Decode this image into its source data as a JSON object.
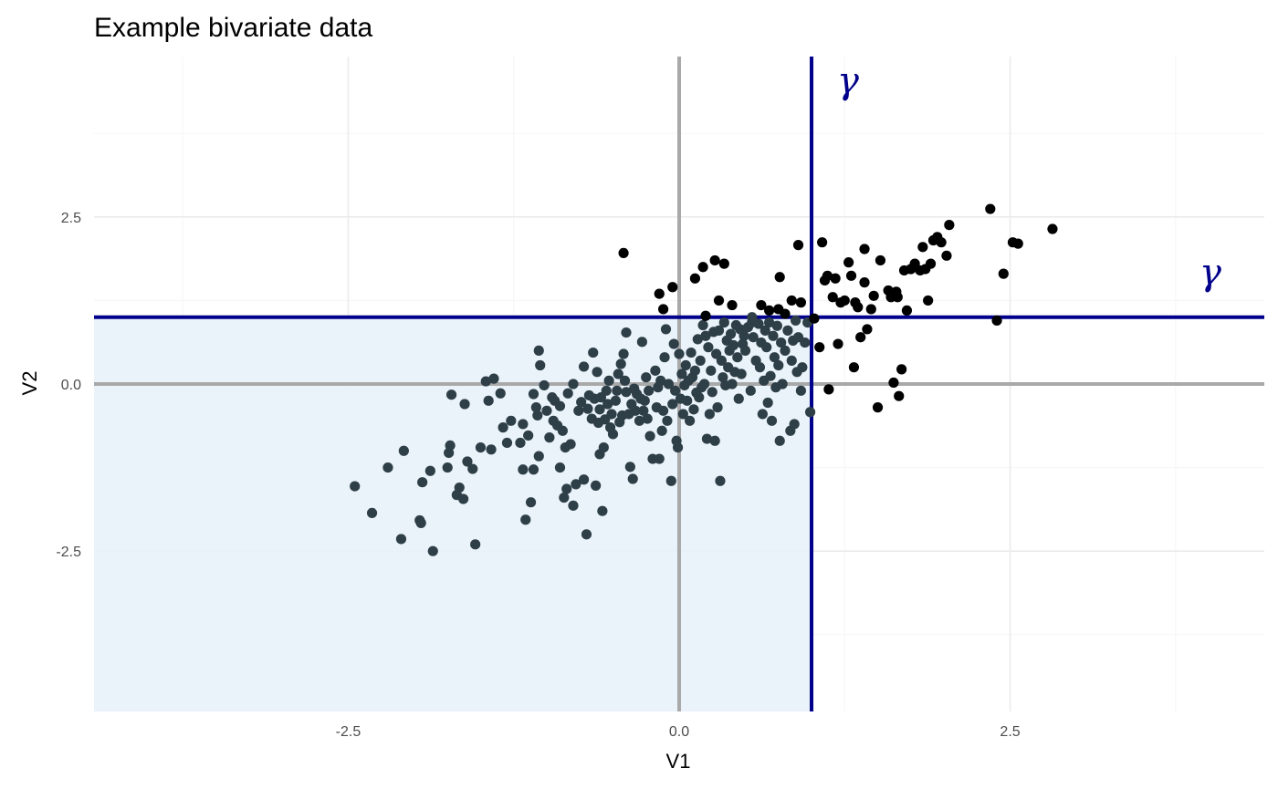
{
  "chart_data": {
    "type": "scatter",
    "title": "Example bivariate data",
    "xlabel": "V1",
    "ylabel": "V2",
    "xlim": [
      -4.42,
      4.42
    ],
    "ylim": [
      -4.9,
      4.9
    ],
    "x_ticks": [
      -2.5,
      0.0,
      2.5
    ],
    "x_tick_labels": [
      "-2.5",
      "0.0",
      "2.5"
    ],
    "y_ticks": [
      -2.5,
      0.0,
      2.5
    ],
    "y_tick_labels": [
      "-2.5",
      "0.0",
      "2.5"
    ],
    "grid": true,
    "legend": "none",
    "threshold": 1.0,
    "threshold_label": "γ",
    "colors": {
      "threshold_line": "#00008b",
      "zero_line": "#a9a9a9",
      "region_fill": "#e8f2f9",
      "point_exceed": "#000000",
      "point_below": "#2f3f47",
      "grid_major": "#ebebeb",
      "grid_minor": "#f5f5f5"
    },
    "points": [
      [
        -2.45,
        -1.53
      ],
      [
        -2.32,
        -1.93
      ],
      [
        -2.2,
        -1.25
      ],
      [
        -2.1,
        -2.32
      ],
      [
        -2.08,
        -1.0
      ],
      [
        -1.96,
        -2.04
      ],
      [
        -1.95,
        -2.08
      ],
      [
        -1.94,
        -1.47
      ],
      [
        -1.88,
        -1.3
      ],
      [
        -1.86,
        -2.5
      ],
      [
        -1.75,
        -1.25
      ],
      [
        -1.74,
        -1.03
      ],
      [
        -1.73,
        -0.92
      ],
      [
        -1.72,
        -0.16
      ],
      [
        -1.68,
        -1.66
      ],
      [
        -1.66,
        -1.55
      ],
      [
        -1.63,
        -1.72
      ],
      [
        -1.62,
        -0.3
      ],
      [
        -1.6,
        -1.16
      ],
      [
        -1.56,
        -1.27
      ],
      [
        -1.54,
        -2.4
      ],
      [
        -1.5,
        -0.95
      ],
      [
        -1.46,
        0.04
      ],
      [
        -1.44,
        -0.25
      ],
      [
        -1.42,
        -0.98
      ],
      [
        -1.4,
        0.08
      ],
      [
        -1.35,
        -0.14
      ],
      [
        -1.33,
        -0.65
      ],
      [
        -1.3,
        -0.88
      ],
      [
        -1.27,
        -0.55
      ],
      [
        -1.2,
        -0.88
      ],
      [
        -1.18,
        -0.6
      ],
      [
        -1.18,
        -1.28
      ],
      [
        -1.16,
        -2.03
      ],
      [
        -1.14,
        -0.77
      ],
      [
        -1.12,
        -1.77
      ],
      [
        -1.1,
        -1.28
      ],
      [
        -1.1,
        -0.15
      ],
      [
        -1.08,
        -0.35
      ],
      [
        -1.07,
        -0.47
      ],
      [
        -1.06,
        -1.08
      ],
      [
        -1.06,
        0.5
      ],
      [
        -1.05,
        0.28
      ],
      [
        -1.02,
        -0.02
      ],
      [
        -1.0,
        -0.4
      ],
      [
        -0.98,
        -0.8
      ],
      [
        -0.96,
        -0.2
      ],
      [
        -0.95,
        -0.55
      ],
      [
        -0.94,
        -0.25
      ],
      [
        -0.92,
        -0.62
      ],
      [
        -0.9,
        -1.25
      ],
      [
        -0.9,
        -0.33
      ],
      [
        -0.88,
        -0.7
      ],
      [
        -0.87,
        -1.7
      ],
      [
        -0.86,
        -0.95
      ],
      [
        -0.85,
        -1.57
      ],
      [
        -0.84,
        -0.14
      ],
      [
        -0.82,
        -0.9
      ],
      [
        -0.8,
        -1.82
      ],
      [
        -0.8,
        0.0
      ],
      [
        -0.78,
        -1.5
      ],
      [
        -0.76,
        -0.4
      ],
      [
        -0.74,
        -0.27
      ],
      [
        -0.72,
        -1.43
      ],
      [
        -0.72,
        0.26
      ],
      [
        -0.7,
        -2.25
      ],
      [
        -0.69,
        -0.37
      ],
      [
        -0.68,
        -0.17
      ],
      [
        -0.66,
        -0.52
      ],
      [
        -0.65,
        0.47
      ],
      [
        -0.64,
        -0.22
      ],
      [
        -0.63,
        -1.52
      ],
      [
        -0.62,
        0.18
      ],
      [
        -0.61,
        -0.58
      ],
      [
        -0.6,
        -0.38
      ],
      [
        -0.6,
        -1.05
      ],
      [
        -0.59,
        -0.2
      ],
      [
        -0.58,
        -1.9
      ],
      [
        -0.57,
        -0.95
      ],
      [
        -0.56,
        -0.53
      ],
      [
        -0.55,
        -0.1
      ],
      [
        -0.54,
        -0.3
      ],
      [
        -0.53,
        0.05
      ],
      [
        -0.52,
        -0.65
      ],
      [
        -0.51,
        -0.45
      ],
      [
        -0.5,
        -0.75
      ],
      [
        -0.48,
        -0.25
      ],
      [
        -0.47,
        -0.1
      ],
      [
        -0.46,
        0.15
      ],
      [
        -0.45,
        -0.57
      ],
      [
        -0.44,
        0.3
      ],
      [
        -0.43,
        -0.47
      ],
      [
        -0.42,
        0.45
      ],
      [
        -0.41,
        0.05
      ],
      [
        -0.4,
        -0.12
      ],
      [
        -0.4,
        0.77
      ],
      [
        -0.38,
        -0.45
      ],
      [
        -0.37,
        -1.24
      ],
      [
        -0.36,
        -0.3
      ],
      [
        -0.35,
        -1.42
      ],
      [
        -0.34,
        -0.07
      ],
      [
        -0.33,
        -0.4
      ],
      [
        -0.32,
        -0.15
      ],
      [
        -0.3,
        -0.55
      ],
      [
        -0.29,
        -0.22
      ],
      [
        -0.28,
        0.63
      ],
      [
        -0.27,
        -0.4
      ],
      [
        -0.26,
        -0.25
      ],
      [
        -0.25,
        0.1
      ],
      [
        -0.24,
        -0.52
      ],
      [
        -0.23,
        -0.1
      ],
      [
        -0.22,
        -0.78
      ],
      [
        -0.2,
        -1.12
      ],
      [
        -0.18,
        0.2
      ],
      [
        -0.17,
        -0.35
      ],
      [
        -0.16,
        -0.05
      ],
      [
        -0.15,
        -1.12
      ],
      [
        -0.14,
        0.05
      ],
      [
        -0.13,
        -0.7
      ],
      [
        -0.12,
        -0.4
      ],
      [
        -0.11,
        0.4
      ],
      [
        -0.1,
        0.82
      ],
      [
        -0.09,
        -0.55
      ],
      [
        -0.08,
        0.0
      ],
      [
        -0.06,
        -1.45
      ],
      [
        -0.05,
        -0.3
      ],
      [
        -0.04,
        0.6
      ],
      [
        -0.03,
        -0.1
      ],
      [
        -0.02,
        -0.85
      ],
      [
        -0.01,
        -0.95
      ],
      [
        0.0,
        0.45
      ],
      [
        0.01,
        -0.22
      ],
      [
        0.02,
        0.15
      ],
      [
        0.03,
        -0.45
      ],
      [
        0.04,
        -0.02
      ],
      [
        0.05,
        0.28
      ],
      [
        0.06,
        -0.25
      ],
      [
        0.07,
        0.05
      ],
      [
        0.08,
        -0.55
      ],
      [
        0.09,
        0.47
      ],
      [
        0.1,
        0.1
      ],
      [
        0.11,
        -0.38
      ],
      [
        0.12,
        0.2
      ],
      [
        0.13,
        -0.13
      ],
      [
        0.14,
        0.67
      ],
      [
        0.15,
        -0.2
      ],
      [
        0.16,
        0.35
      ],
      [
        0.17,
        -0.05
      ],
      [
        0.18,
        0.88
      ],
      [
        0.19,
        0.0
      ],
      [
        0.2,
        0.72
      ],
      [
        0.21,
        -0.82
      ],
      [
        0.22,
        0.55
      ],
      [
        0.23,
        -0.45
      ],
      [
        0.24,
        0.2
      ],
      [
        0.25,
        -0.12
      ],
      [
        0.26,
        0.78
      ],
      [
        0.27,
        -0.85
      ],
      [
        0.28,
        0.45
      ],
      [
        0.29,
        -0.35
      ],
      [
        0.3,
        0.8
      ],
      [
        0.31,
        -1.45
      ],
      [
        0.32,
        0.35
      ],
      [
        0.33,
        0.1
      ],
      [
        0.34,
        0.92
      ],
      [
        0.35,
        -0.02
      ],
      [
        0.36,
        0.65
      ],
      [
        0.37,
        0.25
      ],
      [
        0.38,
        0.5
      ],
      [
        0.39,
        0.75
      ],
      [
        0.4,
        0.0
      ],
      [
        0.41,
        0.58
      ],
      [
        0.42,
        0.18
      ],
      [
        0.43,
        0.88
      ],
      [
        0.44,
        0.4
      ],
      [
        0.45,
        -0.22
      ],
      [
        0.46,
        0.82
      ],
      [
        0.47,
        0.15
      ],
      [
        0.48,
        0.6
      ],
      [
        0.49,
        0.72
      ],
      [
        0.5,
        0.5
      ],
      [
        0.52,
        0.85
      ],
      [
        0.54,
        -0.1
      ],
      [
        0.55,
        0.92
      ],
      [
        0.56,
        0.7
      ],
      [
        0.58,
        0.35
      ],
      [
        0.6,
        0.9
      ],
      [
        0.61,
        0.25
      ],
      [
        0.62,
        0.62
      ],
      [
        0.63,
        -0.45
      ],
      [
        0.64,
        0.05
      ],
      [
        0.65,
        0.8
      ],
      [
        0.66,
        0.55
      ],
      [
        0.67,
        -0.28
      ],
      [
        0.68,
        0.92
      ],
      [
        0.69,
        0.12
      ],
      [
        0.7,
        -0.55
      ],
      [
        0.71,
        0.72
      ],
      [
        0.72,
        0.4
      ],
      [
        0.73,
        -0.05
      ],
      [
        0.74,
        0.87
      ],
      [
        0.75,
        0.28
      ],
      [
        0.76,
        -0.85
      ],
      [
        0.77,
        0.62
      ],
      [
        0.78,
        0.0
      ],
      [
        0.8,
        0.5
      ],
      [
        0.82,
        0.8
      ],
      [
        0.84,
        -0.7
      ],
      [
        0.85,
        0.35
      ],
      [
        0.86,
        0.65
      ],
      [
        0.87,
        -0.6
      ],
      [
        0.88,
        0.95
      ],
      [
        0.89,
        0.18
      ],
      [
        0.9,
        0.7
      ],
      [
        0.92,
        -0.1
      ],
      [
        0.93,
        0.25
      ],
      [
        0.95,
        0.62
      ],
      [
        0.97,
        0.92
      ],
      [
        0.99,
        -0.42
      ],
      [
        -0.42,
        1.96
      ],
      [
        -0.15,
        1.35
      ],
      [
        -0.12,
        1.12
      ],
      [
        -0.05,
        1.45
      ],
      [
        0.12,
        1.58
      ],
      [
        0.18,
        1.75
      ],
      [
        0.2,
        1.02
      ],
      [
        0.27,
        1.85
      ],
      [
        0.3,
        1.25
      ],
      [
        0.34,
        1.8
      ],
      [
        0.4,
        1.18
      ],
      [
        0.55,
        1.0
      ],
      [
        0.62,
        1.18
      ],
      [
        0.68,
        1.1
      ],
      [
        0.75,
        1.12
      ],
      [
        0.76,
        1.6
      ],
      [
        0.8,
        1.05
      ],
      [
        0.85,
        1.25
      ],
      [
        0.9,
        2.08
      ],
      [
        0.92,
        1.22
      ],
      [
        1.02,
        0.98
      ],
      [
        1.06,
        0.55
      ],
      [
        1.08,
        2.12
      ],
      [
        1.1,
        1.55
      ],
      [
        1.12,
        1.62
      ],
      [
        1.13,
        -0.08
      ],
      [
        1.16,
        1.3
      ],
      [
        1.18,
        1.58
      ],
      [
        1.2,
        0.6
      ],
      [
        1.22,
        1.22
      ],
      [
        1.25,
        1.25
      ],
      [
        1.28,
        1.82
      ],
      [
        1.3,
        1.62
      ],
      [
        1.32,
        0.25
      ],
      [
        1.33,
        1.22
      ],
      [
        1.35,
        1.15
      ],
      [
        1.37,
        0.7
      ],
      [
        1.4,
        2.02
      ],
      [
        1.4,
        1.52
      ],
      [
        1.42,
        0.82
      ],
      [
        1.45,
        1.12
      ],
      [
        1.47,
        1.32
      ],
      [
        1.5,
        -0.35
      ],
      [
        1.52,
        1.85
      ],
      [
        1.58,
        1.4
      ],
      [
        1.6,
        1.3
      ],
      [
        1.62,
        0.02
      ],
      [
        1.64,
        1.38
      ],
      [
        1.65,
        1.3
      ],
      [
        1.66,
        -0.18
      ],
      [
        1.68,
        0.22
      ],
      [
        1.7,
        1.7
      ],
      [
        1.72,
        1.1
      ],
      [
        1.75,
        1.72
      ],
      [
        1.78,
        1.8
      ],
      [
        1.82,
        1.7
      ],
      [
        1.84,
        2.05
      ],
      [
        1.86,
        1.72
      ],
      [
        1.88,
        1.25
      ],
      [
        1.9,
        1.8
      ],
      [
        1.92,
        2.15
      ],
      [
        1.95,
        2.2
      ],
      [
        1.98,
        2.12
      ],
      [
        2.02,
        1.92
      ],
      [
        2.04,
        2.38
      ],
      [
        2.35,
        2.62
      ],
      [
        2.4,
        0.95
      ],
      [
        2.45,
        1.65
      ],
      [
        2.52,
        2.12
      ],
      [
        2.56,
        2.1
      ],
      [
        2.82,
        2.32
      ]
    ]
  }
}
